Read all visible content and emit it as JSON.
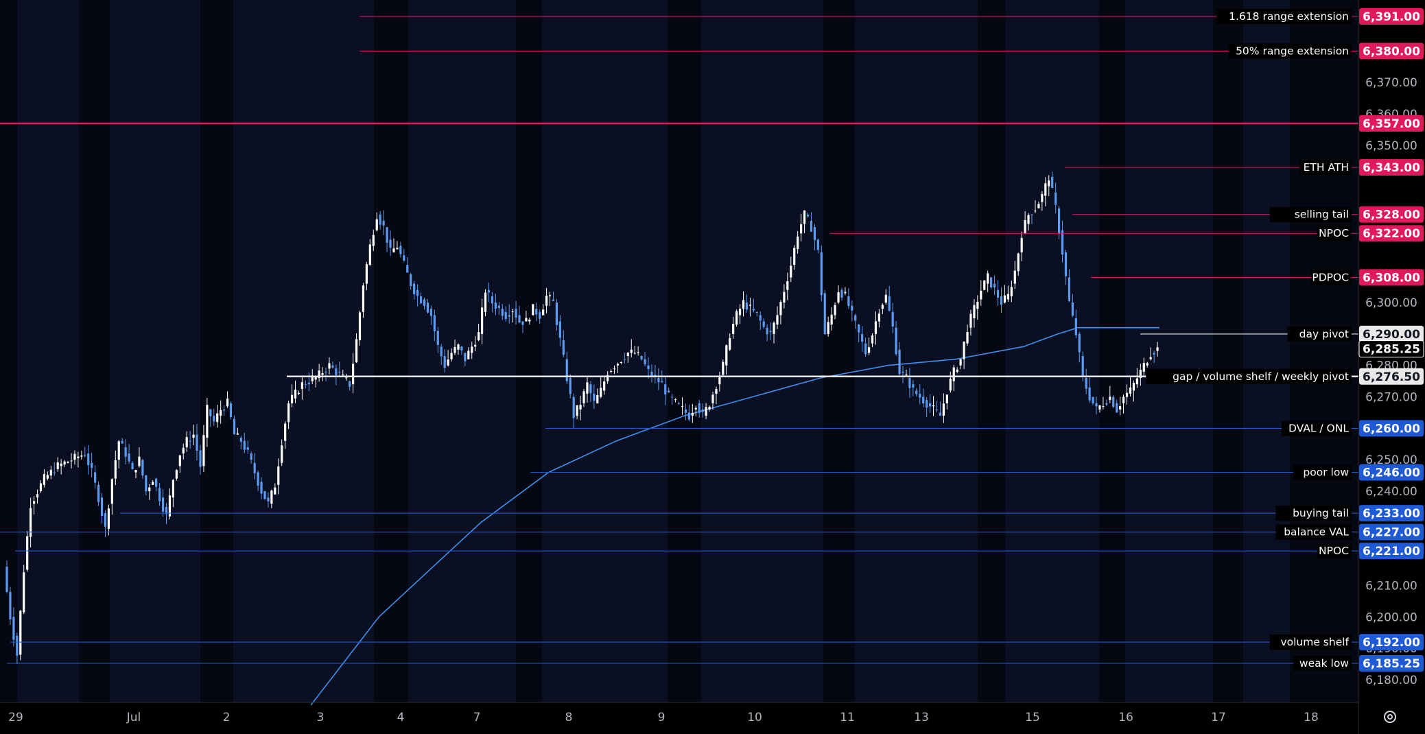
{
  "chart_data": {
    "type": "candlestick",
    "title": "",
    "ylim": [
      6173,
      6397
    ],
    "y_ticks": [
      "6,370.00",
      "6,360.00",
      "6,350.00",
      "6,300.00",
      "6,280.00",
      "6,270.00",
      "6,250.00",
      "6,240.00",
      "6,210.00",
      "6,200.00",
      "6,190.00",
      "6,180.00"
    ],
    "x_labels": [
      "29",
      "Jul",
      "2",
      "3",
      "4",
      "7",
      "8",
      "9",
      "10",
      "11",
      "13",
      "15",
      "16",
      "17",
      "18"
    ],
    "current_price": "6,285.25",
    "levels": [
      {
        "label": "1.618 range extension",
        "price": 6391.0,
        "value": "6,391.00",
        "color": "#e0195e"
      },
      {
        "label": "50% range extension",
        "price": 6380.0,
        "value": "6,380.00",
        "color": "#e0195e"
      },
      {
        "label": "",
        "price": 6357.0,
        "value": "6,357.00",
        "color": "#e0195e"
      },
      {
        "label": "ETH ATH",
        "price": 6343.0,
        "value": "6,343.00",
        "color": "#e0195e"
      },
      {
        "label": "selling tail",
        "price": 6328.0,
        "value": "6,328.00",
        "color": "#e0195e"
      },
      {
        "label": "NPOC",
        "price": 6322.0,
        "value": "6,322.00",
        "color": "#e0195e"
      },
      {
        "label": "PDPOC",
        "price": 6308.0,
        "value": "6,308.00",
        "color": "#e0195e"
      },
      {
        "label": "day pivot",
        "price": 6290.0,
        "value": "6,290.00",
        "color": "#e8e8e8"
      },
      {
        "label": "gap / volume shelf / weekly pivot",
        "price": 6276.5,
        "value": "6,276.50",
        "color": "#e8e8e8"
      },
      {
        "label": "DVAL / ONL",
        "price": 6260.0,
        "value": "6,260.00",
        "color": "#1f5ad6"
      },
      {
        "label": "poor low",
        "price": 6246.0,
        "value": "6,246.00",
        "color": "#1f5ad6"
      },
      {
        "label": "buying tail",
        "price": 6233.0,
        "value": "6,233.00",
        "color": "#1f5ad6"
      },
      {
        "label": "balance VAL",
        "price": 6227.0,
        "value": "6,227.00",
        "color": "#1f5ad6"
      },
      {
        "label": "NPOC",
        "price": 6221.0,
        "value": "6,221.00",
        "color": "#1f5ad6"
      },
      {
        "label": "volume shelf",
        "price": 6192.0,
        "value": "6,192.00",
        "color": "#1f5ad6"
      },
      {
        "label": "weak low",
        "price": 6185.25,
        "value": "6,185.25",
        "color": "#1f5ad6"
      }
    ],
    "price_path": [
      [
        0,
        6216
      ],
      [
        1,
        6200
      ],
      [
        2,
        6188
      ],
      [
        3,
        6215
      ],
      [
        4,
        6236
      ],
      [
        6,
        6244
      ],
      [
        8,
        6248
      ],
      [
        10,
        6250
      ],
      [
        12,
        6252
      ],
      [
        13,
        6246
      ],
      [
        14,
        6238
      ],
      [
        15,
        6228
      ],
      [
        16,
        6244
      ],
      [
        17,
        6256
      ],
      [
        18,
        6252
      ],
      [
        19,
        6246
      ],
      [
        20,
        6250
      ],
      [
        21,
        6240
      ],
      [
        22,
        6244
      ],
      [
        23,
        6238
      ],
      [
        24,
        6232
      ],
      [
        25,
        6244
      ],
      [
        26,
        6252
      ],
      [
        27,
        6256
      ],
      [
        28,
        6258
      ],
      [
        29,
        6248
      ],
      [
        30,
        6266
      ],
      [
        31,
        6262
      ],
      [
        32,
        6266
      ],
      [
        33,
        6268
      ],
      [
        34,
        6258
      ],
      [
        35,
        6256
      ],
      [
        36,
        6252
      ],
      [
        37,
        6246
      ],
      [
        38,
        6240
      ],
      [
        39,
        6236
      ],
      [
        40,
        6242
      ],
      [
        41,
        6256
      ],
      [
        42,
        6268
      ],
      [
        44,
        6274
      ],
      [
        46,
        6276
      ],
      [
        48,
        6280
      ],
      [
        49,
        6278
      ],
      [
        50,
        6276
      ],
      [
        51,
        6274
      ],
      [
        52,
        6288
      ],
      [
        53,
        6306
      ],
      [
        54,
        6318
      ],
      [
        55,
        6328
      ],
      [
        56,
        6324
      ],
      [
        57,
        6316
      ],
      [
        58,
        6318
      ],
      [
        59,
        6312
      ],
      [
        60,
        6306
      ],
      [
        61,
        6302
      ],
      [
        62,
        6300
      ],
      [
        63,
        6296
      ],
      [
        64,
        6286
      ],
      [
        65,
        6280
      ],
      [
        66,
        6284
      ],
      [
        67,
        6286
      ],
      [
        68,
        6282
      ],
      [
        69,
        6286
      ],
      [
        70,
        6290
      ],
      [
        71,
        6304
      ],
      [
        72,
        6300
      ],
      [
        73,
        6298
      ],
      [
        74,
        6296
      ],
      [
        75,
        6298
      ],
      [
        76,
        6294
      ],
      [
        77,
        6294
      ],
      [
        78,
        6298
      ],
      [
        79,
        6296
      ],
      [
        80,
        6302
      ],
      [
        81,
        6300
      ],
      [
        82,
        6288
      ],
      [
        83,
        6276
      ],
      [
        84,
        6264
      ],
      [
        85,
        6268
      ],
      [
        86,
        6274
      ],
      [
        87,
        6268
      ],
      [
        88,
        6272
      ],
      [
        89,
        6278
      ],
      [
        90,
        6280
      ],
      [
        91,
        6282
      ],
      [
        92,
        6284
      ],
      [
        93,
        6284
      ],
      [
        94,
        6282
      ],
      [
        95,
        6278
      ],
      [
        96,
        6276
      ],
      [
        97,
        6274
      ],
      [
        98,
        6270
      ],
      [
        99,
        6268
      ],
      [
        100,
        6266
      ],
      [
        101,
        6264
      ],
      [
        102,
        6268
      ],
      [
        103,
        6264
      ],
      [
        104,
        6268
      ],
      [
        105,
        6274
      ],
      [
        106,
        6280
      ],
      [
        107,
        6290
      ],
      [
        108,
        6296
      ],
      [
        109,
        6300
      ],
      [
        110,
        6298
      ],
      [
        111,
        6296
      ],
      [
        112,
        6292
      ],
      [
        113,
        6290
      ],
      [
        114,
        6296
      ],
      [
        115,
        6304
      ],
      [
        116,
        6312
      ],
      [
        117,
        6322
      ],
      [
        118,
        6328
      ],
      [
        119,
        6324
      ],
      [
        120,
        6316
      ],
      [
        121,
        6290
      ],
      [
        122,
        6296
      ],
      [
        123,
        6304
      ],
      [
        124,
        6302
      ],
      [
        125,
        6296
      ],
      [
        126,
        6290
      ],
      [
        127,
        6284
      ],
      [
        128,
        6290
      ],
      [
        129,
        6298
      ],
      [
        130,
        6302
      ],
      [
        131,
        6292
      ],
      [
        132,
        6278
      ],
      [
        133,
        6276
      ],
      [
        134,
        6272
      ],
      [
        135,
        6270
      ],
      [
        136,
        6268
      ],
      [
        137,
        6266
      ],
      [
        138,
        6264
      ],
      [
        139,
        6272
      ],
      [
        140,
        6278
      ],
      [
        141,
        6282
      ],
      [
        142,
        6292
      ],
      [
        143,
        6298
      ],
      [
        144,
        6304
      ],
      [
        145,
        6308
      ],
      [
        146,
        6304
      ],
      [
        147,
        6300
      ],
      [
        148,
        6302
      ],
      [
        149,
        6310
      ],
      [
        150,
        6322
      ],
      [
        151,
        6328
      ],
      [
        152,
        6330
      ],
      [
        153,
        6334
      ],
      [
        154,
        6340
      ],
      [
        155,
        6330
      ],
      [
        156,
        6316
      ],
      [
        157,
        6300
      ],
      [
        158,
        6290
      ],
      [
        159,
        6276
      ],
      [
        160,
        6270
      ],
      [
        161,
        6266
      ],
      [
        162,
        6268
      ],
      [
        163,
        6270
      ],
      [
        164,
        6266
      ],
      [
        165,
        6270
      ],
      [
        166,
        6272
      ],
      [
        167,
        6276
      ],
      [
        168,
        6280
      ],
      [
        169,
        6284
      ],
      [
        170,
        6285.25
      ]
    ],
    "ma_path": [
      [
        45,
        6172
      ],
      [
        50,
        6186
      ],
      [
        55,
        6200
      ],
      [
        60,
        6210
      ],
      [
        65,
        6220
      ],
      [
        70,
        6230
      ],
      [
        75,
        6238
      ],
      [
        80,
        6246
      ],
      [
        90,
        6256
      ],
      [
        100,
        6264
      ],
      [
        110,
        6270
      ],
      [
        120,
        6276
      ],
      [
        130,
        6280
      ],
      [
        140,
        6282
      ],
      [
        150,
        6286
      ],
      [
        155,
        6290
      ],
      [
        158,
        6292
      ],
      [
        165,
        6292
      ],
      [
        170,
        6292
      ]
    ],
    "levels_label_note": ""
  },
  "ui": {
    "settings_icon": "gear-icon"
  }
}
